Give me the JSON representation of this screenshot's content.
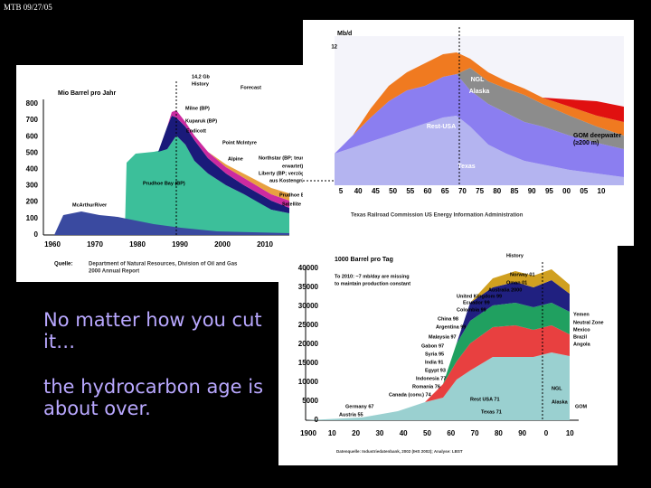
{
  "header": {
    "date": "MTB 09/27/05"
  },
  "body": {
    "lines": [
      "No matter how you cut",
      "it…",
      "the hydrocarbon age is",
      "about over."
    ]
  },
  "figures": [
    {
      "yunit": "Mio Barrel pro Jahr",
      "yticks": [
        "800",
        "700",
        "600",
        "500",
        "400",
        "300",
        "200",
        "100",
        "0"
      ],
      "xticks": [
        "1960",
        "1970",
        "1980",
        "1990",
        "2000",
        "2010"
      ],
      "labels": [
        "14,2 Gb",
        "History",
        "Forecast",
        "Milne (BP)",
        "Kuparuk (BP)",
        "Endicott",
        "Point McIntyre",
        "Alpine",
        "Northstar (BP; teurer als",
        "erwartet)",
        "Liberty (BP; verzögert",
        "aus Kostengründen)",
        "Prudhoe Bay (BP)",
        "McArthurRiver",
        "Prudhoe Bay",
        "Satellite"
      ],
      "source_label": "Quelle:",
      "source": [
        "Department of Natural Resources, Division of Oil and Gas",
        "2000 Annual Report"
      ]
    },
    {
      "yunit": "Mb/d",
      "yticks": [
        "12"
      ],
      "xticks": [
        "5",
        "40",
        "45",
        "50",
        "55",
        "60",
        "65",
        "70",
        "75",
        "80",
        "85",
        "90",
        "95",
        "00",
        "05",
        "10"
      ],
      "labels": [
        "NGL",
        "Alaska",
        "Rest-USA",
        "Texas",
        "GOM deepwater",
        "(≥200 m)"
      ],
      "source": [
        "Texas Railroad Commission US Energy Information Administration"
      ]
    },
    {
      "yunit": "1000 Barrel pro Tag",
      "yticks": [
        "40000",
        "35000",
        "30000",
        "25000",
        "20000",
        "15000",
        "10000",
        "5000",
        "0"
      ],
      "xticks": [
        "1900",
        "10",
        "20",
        "30",
        "40",
        "50",
        "60",
        "70",
        "80",
        "90",
        "0",
        "10"
      ],
      "labels": [
        "History",
        "To 2010: ~7 mb/day are missing",
        "to maintain production constant",
        "Norway 01",
        "Oman 01",
        "Australia 2000",
        "United Kingdom 99",
        "Ecuador 99",
        "Colombia 99",
        "China 98",
        "Argentina 99",
        "Malaysia 97",
        "Gabon 97",
        "Syria 95",
        "India 91",
        "Egypt 93",
        "Indonesia 77",
        "Romania 76",
        "Canada (conv.) 74",
        "Germany 67",
        "Austria 55",
        "Rest USA 71",
        "Texas 71",
        "NGL",
        "Alaska",
        "Yemen",
        "Neutral Zone",
        "Mexico",
        "Brazil",
        "Angola",
        "GOM"
      ],
      "source": [
        "Datenquelle: Industriedatenbank, 2002 (IHS 2002); Analyse: LBST"
      ]
    }
  ]
}
